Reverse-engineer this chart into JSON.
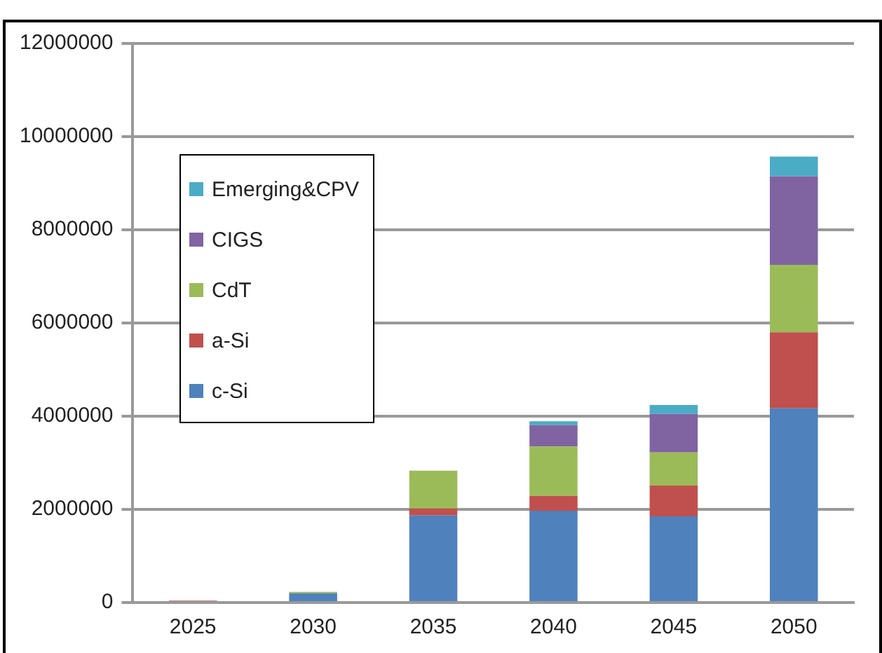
{
  "chart_data": {
    "type": "bar",
    "stacked": true,
    "categories": [
      "2025",
      "2030",
      "2035",
      "2040",
      "2045",
      "2050"
    ],
    "series": [
      {
        "name": "c-Si",
        "color": "#4f81bd",
        "values": [
          0,
          200000,
          1870000,
          1970000,
          1850000,
          4170000
        ]
      },
      {
        "name": "a-Si",
        "color": "#c0504d",
        "values": [
          40000,
          0,
          150000,
          320000,
          660000,
          1630000
        ]
      },
      {
        "name": "CdT",
        "color": "#9bbb59",
        "values": [
          0,
          30000,
          810000,
          1060000,
          710000,
          1450000
        ]
      },
      {
        "name": "CIGS",
        "color": "#8064a2",
        "values": [
          0,
          0,
          0,
          460000,
          830000,
          1900000
        ]
      },
      {
        "name": "Emerging&CPV",
        "color": "#4bacc6",
        "values": [
          0,
          0,
          0,
          80000,
          190000,
          420000
        ]
      }
    ],
    "ylim": [
      0,
      12000000
    ],
    "yticks": [
      0,
      2000000,
      4000000,
      6000000,
      8000000,
      10000000,
      12000000
    ],
    "grid": "y",
    "legend": "top left"
  }
}
